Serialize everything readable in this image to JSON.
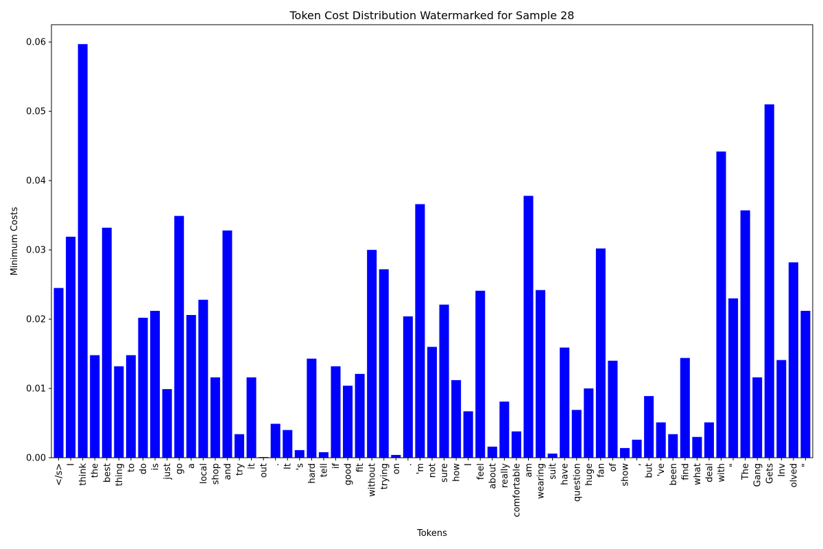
{
  "chart_data": {
    "type": "bar",
    "title": "Token Cost Distribution Watermarked for Sample 28",
    "xlabel": "Tokens",
    "ylabel": "Minimum Costs",
    "ylim": [
      0,
      0.0625
    ],
    "yticks": [
      "0.00",
      "0.01",
      "0.02",
      "0.03",
      "0.04",
      "0.05",
      "0.06"
    ],
    "bar_color": "#0000ff",
    "grid": false,
    "categories": [
      "</s>",
      "I",
      "think",
      "the",
      "best",
      "thing",
      "to",
      "do",
      "is",
      "just",
      "go",
      "a",
      "local",
      "shop",
      "and",
      "try",
      "it",
      "out",
      ".",
      "It",
      "'s",
      "hard",
      "tell",
      "if",
      "good",
      "fit",
      "without",
      "trying",
      "on",
      ".",
      "'m",
      "not",
      "sure",
      "how",
      "I",
      "feel",
      "about",
      "really",
      "comfortable",
      "am",
      "wearing",
      "suit",
      "have",
      "question",
      "huge",
      "fan",
      "of",
      "show",
      ",",
      "but",
      "'ve",
      "been",
      "find",
      "what",
      "deal",
      "with",
      "\"",
      "The",
      "Gang",
      "Gets",
      "Inv",
      "olved",
      "\""
    ],
    "values": [
      0.0245,
      0.0319,
      0.0597,
      0.0148,
      0.0332,
      0.0132,
      0.0148,
      0.0202,
      0.0212,
      0.0099,
      0.0349,
      0.0206,
      0.0228,
      0.0116,
      0.0328,
      0.0034,
      0.0116,
      0.0001,
      0.0049,
      0.004,
      0.0011,
      0.0143,
      0.0008,
      0.0132,
      0.0104,
      0.0121,
      0.03,
      0.0272,
      0.0004,
      0.0204,
      0.0366,
      0.016,
      0.0221,
      0.0112,
      0.0067,
      0.0241,
      0.0016,
      0.0081,
      0.0038,
      0.0378,
      0.0242,
      0.0006,
      0.0159,
      0.0069,
      0.01,
      0.0302,
      0.014,
      0.0014,
      0.0026,
      0.0089,
      0.0051,
      0.0034,
      0.0144,
      0.003,
      0.0051,
      0.0442,
      0.023,
      0.0357,
      0.0116,
      0.051,
      0.0141,
      0.0282,
      0.0212
    ]
  }
}
